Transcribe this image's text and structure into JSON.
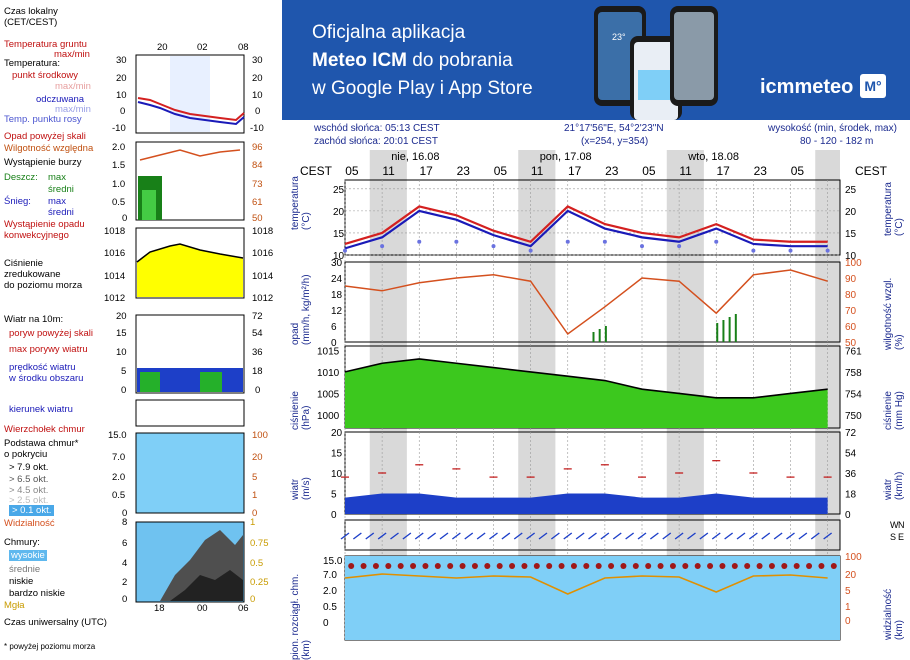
{
  "legend": {
    "time_local": "Czas lokalny\n(CET/CEST)",
    "top_ticks": [
      "20",
      "02",
      "08"
    ],
    "soil_temp": "Temperatura gruntu",
    "soil_temp_sub": "max/min",
    "temperature": "Temperatura:",
    "mid_point": "punkt środkowy",
    "max_min": "max/min",
    "feels_like": "odczuwana",
    "max_min2": "max/min",
    "dew_point": "Temp. punktu rosy",
    "rain_above": "Opad powyżej skali",
    "humidity": "Wilgotność względna",
    "storm": "Wystąpienie burzy",
    "rain_label": "Deszcz:",
    "max": "max",
    "avg": "średni",
    "snow_label": "Śnieg:",
    "max2": "max",
    "avg2": "średni",
    "convective": "Wystąpienie opadu\nkonwekcyjnego",
    "pressure": "Ciśnienie\nzredukowane\ndo poziomu morza",
    "wind_10m": "Wiatr na 10m:",
    "gust_above": "poryw powyżej skali",
    "max_gust": "max porywy wiatru",
    "wind_speed": "prędkość wiatru\nw środku obszaru",
    "wind_dir": "kierunek wiatru",
    "vane": "Wierzchołek chmur",
    "cloud_base": "Podstawa chmur*\no pokryciu",
    "okt_79": "> 7.9 okt.",
    "okt_65": "> 6.5 okt.",
    "okt_45": "> 4.5 okt.",
    "okt_25": "> 2.5 okt.",
    "okt_01": "> 0.1 okt.",
    "visibility": "Widzialność",
    "clouds": "Chmury:",
    "high": "wysokie",
    "mid": "średnie",
    "low": "niskie",
    "very_low": "bardzo niskie",
    "fog": "Mgła",
    "utc": "Czas uniwersalny (UTC)",
    "bottom_ticks": [
      "18",
      "00",
      "06"
    ],
    "footnote": "* powyżej poziomu morza",
    "temp_axis": [
      "30",
      "20",
      "10",
      "0",
      "-10"
    ],
    "temp_axis_r": [
      "30",
      "20",
      "10",
      "0",
      "-10"
    ],
    "rain_axis": [
      "2.0",
      "1.5",
      "1.0",
      "0.5",
      "0"
    ],
    "hum_axis": [
      "96",
      "84",
      "73",
      "61",
      "50"
    ],
    "press_axis": [
      "1018",
      "1016",
      "1014",
      "1012"
    ],
    "wind_axis": [
      "20",
      "15",
      "10",
      "5",
      "0"
    ],
    "wind_axis_r": [
      "72",
      "54",
      "36",
      "18",
      "0"
    ],
    "cb_axis": [
      "15.0",
      "7.0",
      "2.0",
      "0.5",
      "0"
    ],
    "vis_axis": [
      "100",
      "20",
      "5",
      "1",
      "0"
    ],
    "cl_axis": [
      "8",
      "6",
      "4",
      "2",
      "0"
    ],
    "cl_axis_r": [
      "1",
      "0.75",
      "0.5",
      "0.25",
      "0"
    ]
  },
  "banner": {
    "line1": "Oficjalna aplikacja",
    "line2a": "Meteo ICM",
    "line2b": " do pobrania",
    "line3": "w Google Play i App Store",
    "logo_text": "icmmeteo",
    "logo_badge": "M°",
    "phone_temp": "23°"
  },
  "info": {
    "sunrise": "wschód słońca: 05:13 CEST",
    "sunset": "zachód słońca: 20:01 CEST",
    "coords": "21°17'56\"E, 54°2'23\"N",
    "grid": "(x=254,  y=354)",
    "altitude_label": "wysokość (min, środek, max)",
    "altitude_values": "80 - 120 - 182 m"
  },
  "axes": {
    "tz": "CEST",
    "days": [
      "nie, 16.08",
      "pon, 17.08",
      "wto, 18.08"
    ],
    "hours": [
      "05",
      "11",
      "17",
      "23",
      "05",
      "11",
      "17",
      "23",
      "05",
      "11",
      "17",
      "23",
      "05"
    ],
    "temp_label": "temperatura\n(°C)",
    "temp_ticks": [
      "25",
      "20",
      "15",
      "10"
    ],
    "rain_label": "opad\n(mm/h, kg/m²/h)",
    "rain_ticks": [
      "30",
      "24",
      "18",
      "12",
      "6",
      "0"
    ],
    "hum_label": "wilgotność wzgl.\n(%)",
    "hum_ticks": [
      "100",
      "90",
      "80",
      "70",
      "60",
      "50"
    ],
    "press_label": "ciśnienie\n(hPa)",
    "press_ticks": [
      "1015",
      "1010",
      "1005",
      "1000"
    ],
    "press_label_r": "ciśnienie\n(mm Hg)",
    "press_ticks_r": [
      "761",
      "758",
      "754",
      "750"
    ],
    "wind_label": "wiatr\n(m/s)",
    "wind_ticks": [
      "20",
      "15",
      "10",
      "5",
      "0"
    ],
    "wind_label_r": "wiatr\n(km/h)",
    "wind_ticks_r": [
      "72",
      "54",
      "36",
      "18",
      "0"
    ],
    "cb_label": "pion. rozciągł. chm.\n(km)",
    "cb_ticks": [
      "15.0",
      "7.0",
      "2.0",
      "0.5",
      "0"
    ],
    "vis_label": "widzialność\n(km)",
    "vis_ticks": [
      "20",
      "5",
      "1",
      "0"
    ],
    "vis_ticks_top": "100",
    "cl_ticks": [
      "8"
    ],
    "compass": [
      "W",
      "N",
      "S",
      "E"
    ]
  },
  "chart_data": [
    {
      "type": "line",
      "title": "temperatura",
      "ylabel": "temperatura (°C)",
      "ylim": [
        10,
        27
      ],
      "x_hours": [
        0,
        6,
        12,
        18,
        24,
        30,
        36,
        42,
        48,
        54,
        60,
        66,
        72,
        78
      ],
      "series": [
        {
          "name": "punkt środkowy",
          "values": [
            12.5,
            15,
            21,
            19,
            15.5,
            13,
            21,
            17,
            15,
            14,
            17,
            13.5,
            13,
            13
          ]
        },
        {
          "name": "odczuwana",
          "values": [
            11.5,
            14,
            20,
            18,
            14.5,
            12,
            20,
            16,
            14,
            13,
            16,
            12.5,
            12,
            12
          ]
        },
        {
          "name": "Temp. punktu rosy",
          "values": [
            11,
            12,
            13,
            13,
            12,
            11,
            13,
            13,
            12,
            12,
            13,
            11,
            11,
            11
          ]
        }
      ]
    },
    {
      "type": "line",
      "title": "wilgotność wzgl.",
      "ylabel": "(%)",
      "ylim": [
        50,
        100
      ],
      "x_hours": [
        0,
        6,
        12,
        18,
        24,
        30,
        36,
        42,
        48,
        54,
        60,
        66,
        72,
        78
      ],
      "series": [
        {
          "name": "Wilgotność względna",
          "values": [
            85,
            82,
            87,
            90,
            92,
            88,
            55,
            72,
            90,
            88,
            68,
            92,
            95,
            88
          ]
        }
      ]
    },
    {
      "type": "area",
      "title": "ciśnienie",
      "ylabel": "ciśnienie (hPa)",
      "ylim": [
        997,
        1016
      ],
      "x_hours": [
        0,
        6,
        12,
        18,
        24,
        30,
        36,
        42,
        48,
        54,
        60,
        66,
        72,
        78
      ],
      "series": [
        {
          "name": "Ciśnienie",
          "values": [
            1010,
            1012,
            1013,
            1012,
            1011,
            1010,
            1009,
            1008,
            1006,
            1005,
            1004,
            1004,
            1005,
            1006
          ]
        }
      ]
    },
    {
      "type": "line",
      "title": "wiatr",
      "ylabel": "wiatr (m/s)",
      "ylim": [
        0,
        20
      ],
      "x_hours": [
        0,
        6,
        12,
        18,
        24,
        30,
        36,
        42,
        48,
        54,
        60,
        66,
        72,
        78
      ],
      "series": [
        {
          "name": "prędkość wiatru",
          "values": [
            4,
            5,
            5,
            4,
            4,
            4,
            5,
            5,
            4,
            4,
            5,
            4,
            4,
            4
          ]
        },
        {
          "name": "max porywy wiatru",
          "values": [
            9,
            10,
            12,
            11,
            9,
            9,
            11,
            12,
            9,
            10,
            13,
            10,
            9,
            9
          ]
        }
      ]
    }
  ],
  "colors": {
    "banner": "#1f56ad",
    "temp_red": "#d42020",
    "feels_blue": "#1a1ab8",
    "dew": "#6a72e0",
    "humidity": "#d4501e",
    "pressure_green": "#3cc81e",
    "pressure_yellow": "#ffff00",
    "wind_blue": "#1d3fc8",
    "sky": "#7fcff7",
    "grid_night": "#d9d9d9",
    "label_blue": "#1b2a8f"
  }
}
